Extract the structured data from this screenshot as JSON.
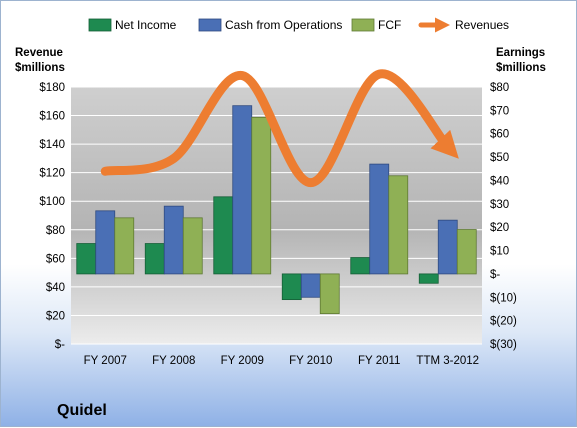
{
  "chart_data": {
    "type": "bar",
    "title": "",
    "company": "Quidel",
    "categories": [
      "FY 2007",
      "FY 2008",
      "FY 2009",
      "FY 2010",
      "FY 2011",
      "TTM 3-2012"
    ],
    "left_axis": {
      "label_line1": "Revenue",
      "label_line2": "$millions",
      "ticks": [
        {
          "v": 0,
          "label": "$-"
        },
        {
          "v": 20,
          "label": "$20"
        },
        {
          "v": 40,
          "label": "$40"
        },
        {
          "v": 60,
          "label": "$60"
        },
        {
          "v": 80,
          "label": "$80"
        },
        {
          "v": 100,
          "label": "$100"
        },
        {
          "v": 120,
          "label": "$120"
        },
        {
          "v": 140,
          "label": "$140"
        },
        {
          "v": 160,
          "label": "$160"
        },
        {
          "v": 180,
          "label": "$180"
        }
      ],
      "ylim": [
        0,
        180
      ]
    },
    "right_axis": {
      "label_line1": "Earnings",
      "label_line2": "$millions",
      "ticks": [
        {
          "v": -30,
          "label": "$(30)"
        },
        {
          "v": -20,
          "label": "$(20)"
        },
        {
          "v": -10,
          "label": "$(10)"
        },
        {
          "v": 0,
          "label": "$-"
        },
        {
          "v": 10,
          "label": "$10"
        },
        {
          "v": 20,
          "label": "$20"
        },
        {
          "v": 30,
          "label": "$30"
        },
        {
          "v": 40,
          "label": "$40"
        },
        {
          "v": 50,
          "label": "$50"
        },
        {
          "v": 60,
          "label": "$60"
        },
        {
          "v": 70,
          "label": "$70"
        },
        {
          "v": 80,
          "label": "$80"
        }
      ],
      "ylim": [
        -30,
        80
      ]
    },
    "series": [
      {
        "name": "Net Income",
        "axis": "right",
        "kind": "bar",
        "color": "#1e8a50",
        "values": [
          13,
          13,
          33,
          -11,
          7,
          -4
        ]
      },
      {
        "name": "Cash from Operations",
        "axis": "right",
        "kind": "bar",
        "color": "#4a6fb5",
        "values": [
          27,
          29,
          72,
          -10,
          47,
          23
        ]
      },
      {
        "name": "FCF",
        "axis": "right",
        "kind": "bar",
        "color": "#8fb055",
        "values": [
          24,
          24,
          67,
          -17,
          42,
          19
        ]
      },
      {
        "name": "Revenues",
        "axis": "left",
        "kind": "line",
        "color": "#ed7d31",
        "values": [
          121,
          130,
          188,
          113,
          189,
          138
        ]
      }
    ],
    "legend_position": "top",
    "grid": true
  }
}
